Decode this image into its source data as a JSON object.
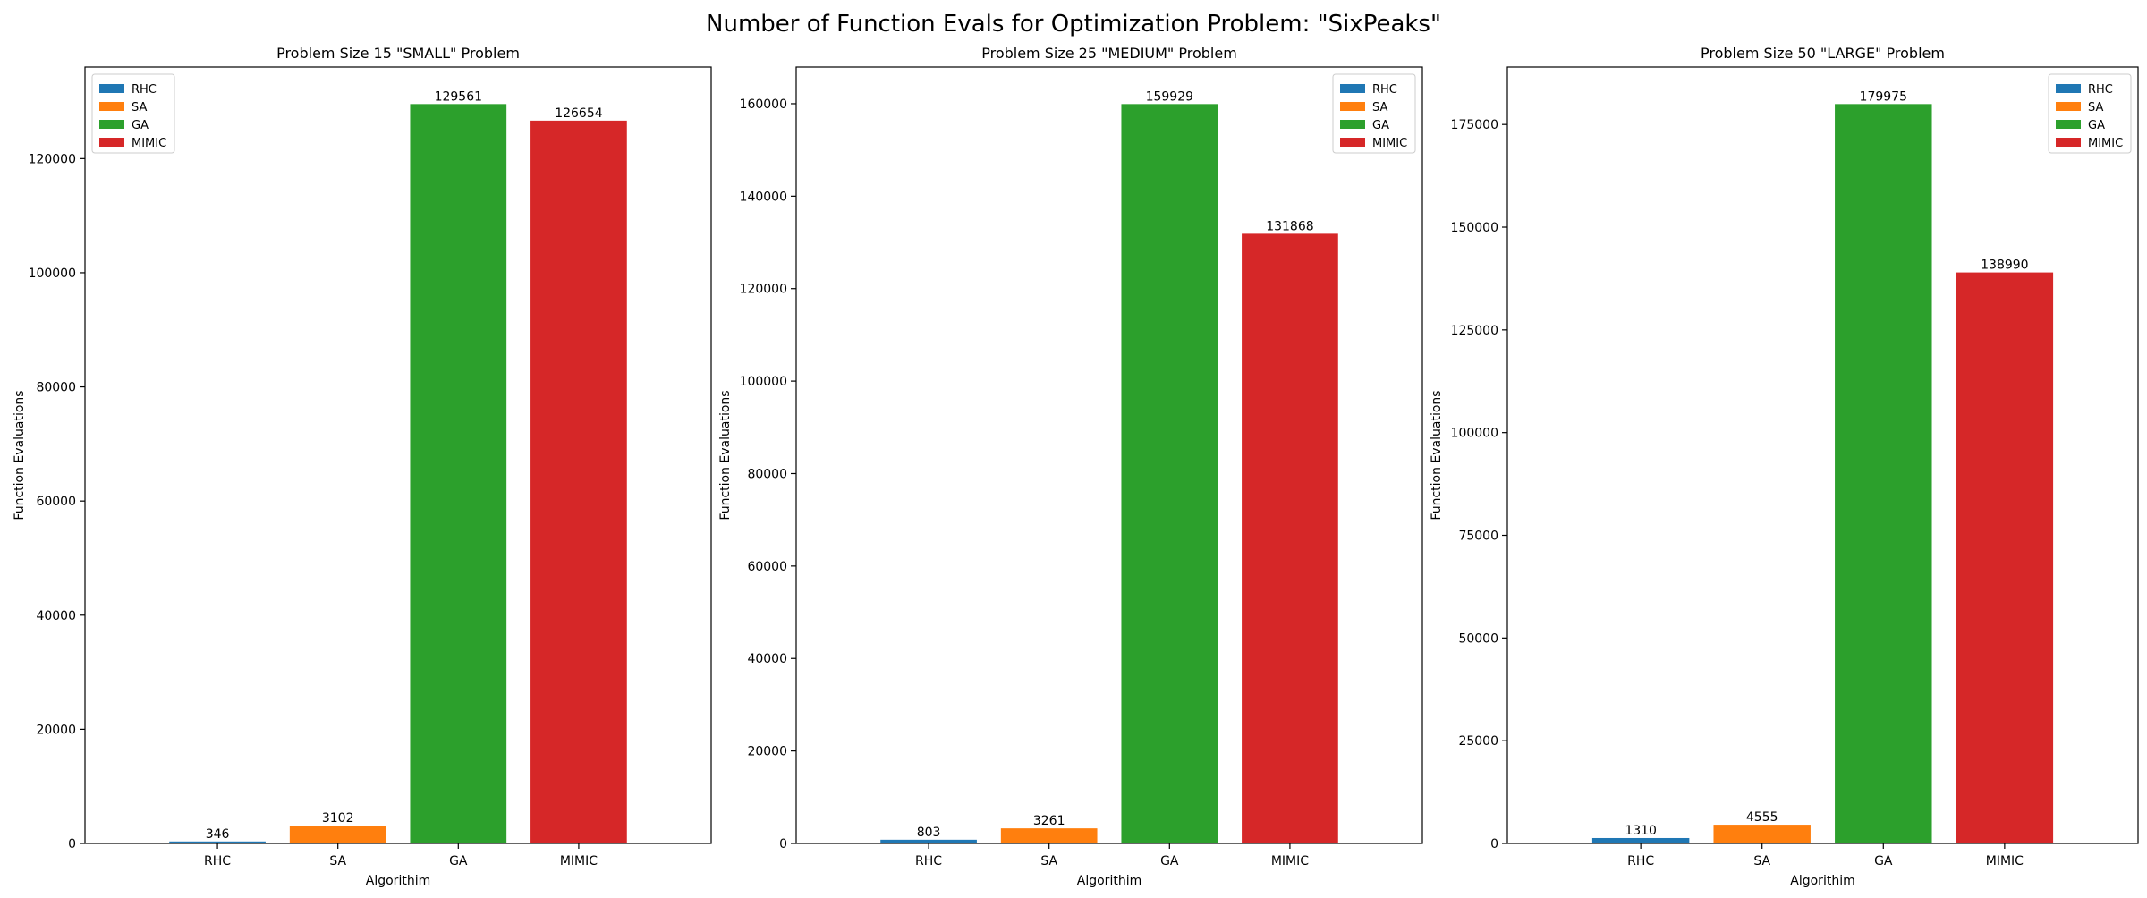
{
  "figure": {
    "title": "Number of Function Evals for Optimization Problem: \"SixPeaks\""
  },
  "colors": {
    "RHC": "#1f77b4",
    "SA": "#ff7f0e",
    "GA": "#2ca02c",
    "MIMIC": "#d62728"
  },
  "chart_data": [
    {
      "type": "bar",
      "title": "Problem Size 15 \"SMALL\" Problem",
      "xlabel": "Algorithim",
      "ylabel": "Function Evaluations",
      "categories": [
        "RHC",
        "SA",
        "GA",
        "MIMIC"
      ],
      "values": [
        346,
        3102,
        129561,
        126654
      ],
      "data_labels": [
        "346",
        "3102",
        "129561",
        "126654"
      ],
      "ylim": [
        0,
        136039
      ],
      "yticks": [
        0,
        20000,
        40000,
        60000,
        80000,
        100000,
        120000
      ],
      "legend": {
        "position": "top-left",
        "entries": [
          "RHC",
          "SA",
          "GA",
          "MIMIC"
        ]
      },
      "grid": false
    },
    {
      "type": "bar",
      "title": "Problem Size 25 \"MEDIUM\" Problem",
      "xlabel": "Algorithim",
      "ylabel": "Function Evaluations",
      "categories": [
        "RHC",
        "SA",
        "GA",
        "MIMIC"
      ],
      "values": [
        803,
        3261,
        159929,
        131868
      ],
      "data_labels": [
        "803",
        "3261",
        "159929",
        "131868"
      ],
      "ylim": [
        0,
        167925
      ],
      "yticks": [
        0,
        20000,
        40000,
        60000,
        80000,
        100000,
        120000,
        140000,
        160000
      ],
      "legend": {
        "position": "top-right",
        "entries": [
          "RHC",
          "SA",
          "GA",
          "MIMIC"
        ]
      },
      "grid": false
    },
    {
      "type": "bar",
      "title": "Problem Size 50 \"LARGE\" Problem",
      "xlabel": "Algorithim",
      "ylabel": "Function Evaluations",
      "categories": [
        "RHC",
        "SA",
        "GA",
        "MIMIC"
      ],
      "values": [
        1310,
        4555,
        179975,
        138990
      ],
      "data_labels": [
        "1310",
        "4555",
        "179975",
        "138990"
      ],
      "ylim": [
        0,
        188974
      ],
      "yticks": [
        0,
        25000,
        50000,
        75000,
        100000,
        125000,
        150000,
        175000
      ],
      "legend": {
        "position": "top-right",
        "entries": [
          "RHC",
          "SA",
          "GA",
          "MIMIC"
        ]
      },
      "grid": false
    }
  ]
}
